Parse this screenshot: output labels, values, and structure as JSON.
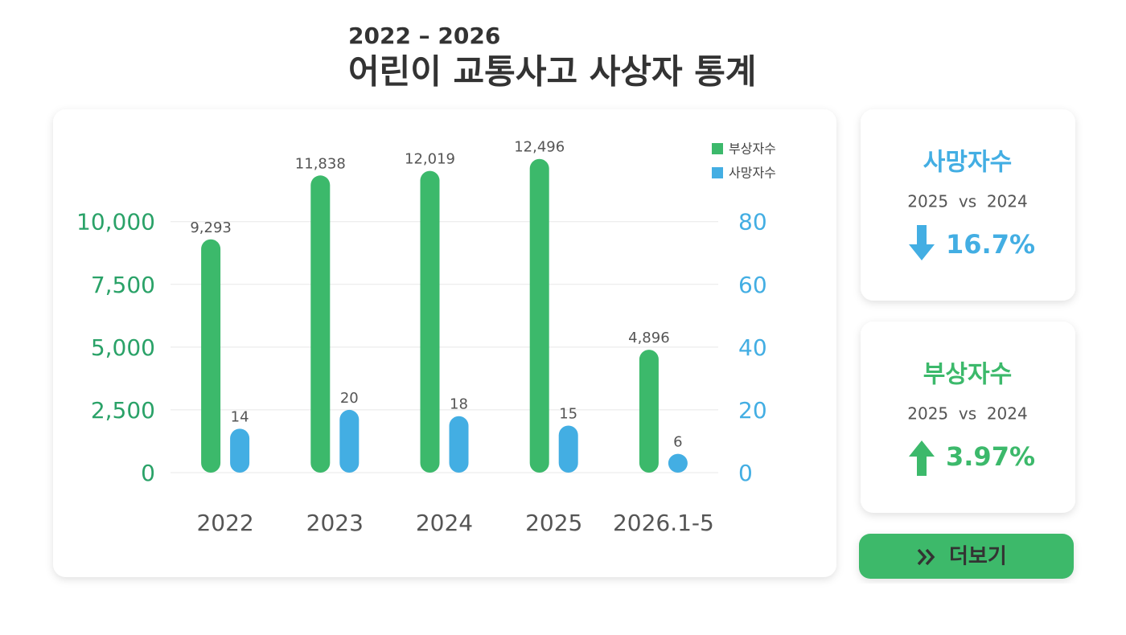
{
  "chart_data": {
    "type": "bar",
    "title": "어린이 교통사고 사상자 통계",
    "subtitle": "2022 – 2026",
    "categories": [
      "2022",
      "2023",
      "2024",
      "2025",
      "2026.1-5"
    ],
    "series": [
      {
        "name": "부상자수",
        "color": "#3cb96b",
        "values": [
          9293,
          11838,
          12019,
          12496,
          4896
        ],
        "value_labels": [
          "9,293",
          "11,838",
          "12,019",
          "12,496",
          "4,896"
        ]
      },
      {
        "name": "사망자수",
        "color": "#43aee3",
        "axis": "y2",
        "values": [
          14,
          20,
          18,
          15,
          6
        ]
      }
    ],
    "ylim": [
      0,
      13000
    ],
    "yticks": [
      0,
      {
        "value": 2500,
        "label": "2,500"
      },
      {
        "value": 5000,
        "label": "5,000"
      },
      {
        "value": 7500,
        "label": "7,500"
      },
      {
        "value": 10000,
        "label": "10,000"
      }
    ],
    "y2lim": [
      0,
      104
    ],
    "y2ticks": [
      0,
      20,
      40,
      60,
      80
    ],
    "grid": true,
    "legend": "top-right"
  },
  "cards": [
    {
      "title": "사망자수",
      "compare": "2025  vs  2024",
      "change": "16.7%",
      "direction": "down",
      "color": "#43aee3"
    },
    {
      "title": "부상자수",
      "compare": "2025  vs  2024",
      "change": "3.97%",
      "direction": "up",
      "color": "#3cb96b"
    }
  ],
  "button": {
    "label": "더보기"
  }
}
